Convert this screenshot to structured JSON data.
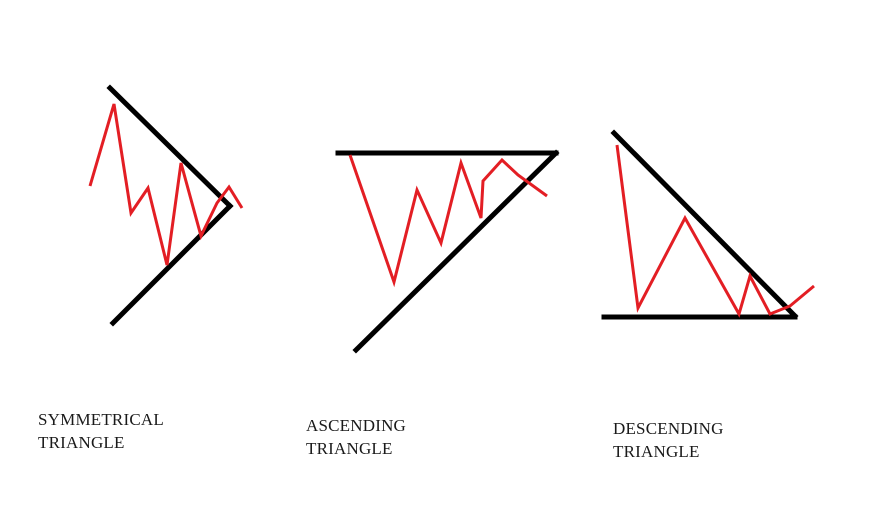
{
  "colors": {
    "trendline": "#000000",
    "price": "#e31e24",
    "background": "#ffffff"
  },
  "patterns": [
    {
      "id": "symmetrical",
      "caption_line1": "SYMMETRICAL",
      "caption_line2": "TRIANGLE"
    },
    {
      "id": "ascending",
      "caption_line1": "ASCENDING",
      "caption_line2": "TRIANGLE"
    },
    {
      "id": "descending",
      "caption_line1": "DESCENDING",
      "caption_line2": "TRIANGLE"
    }
  ]
}
